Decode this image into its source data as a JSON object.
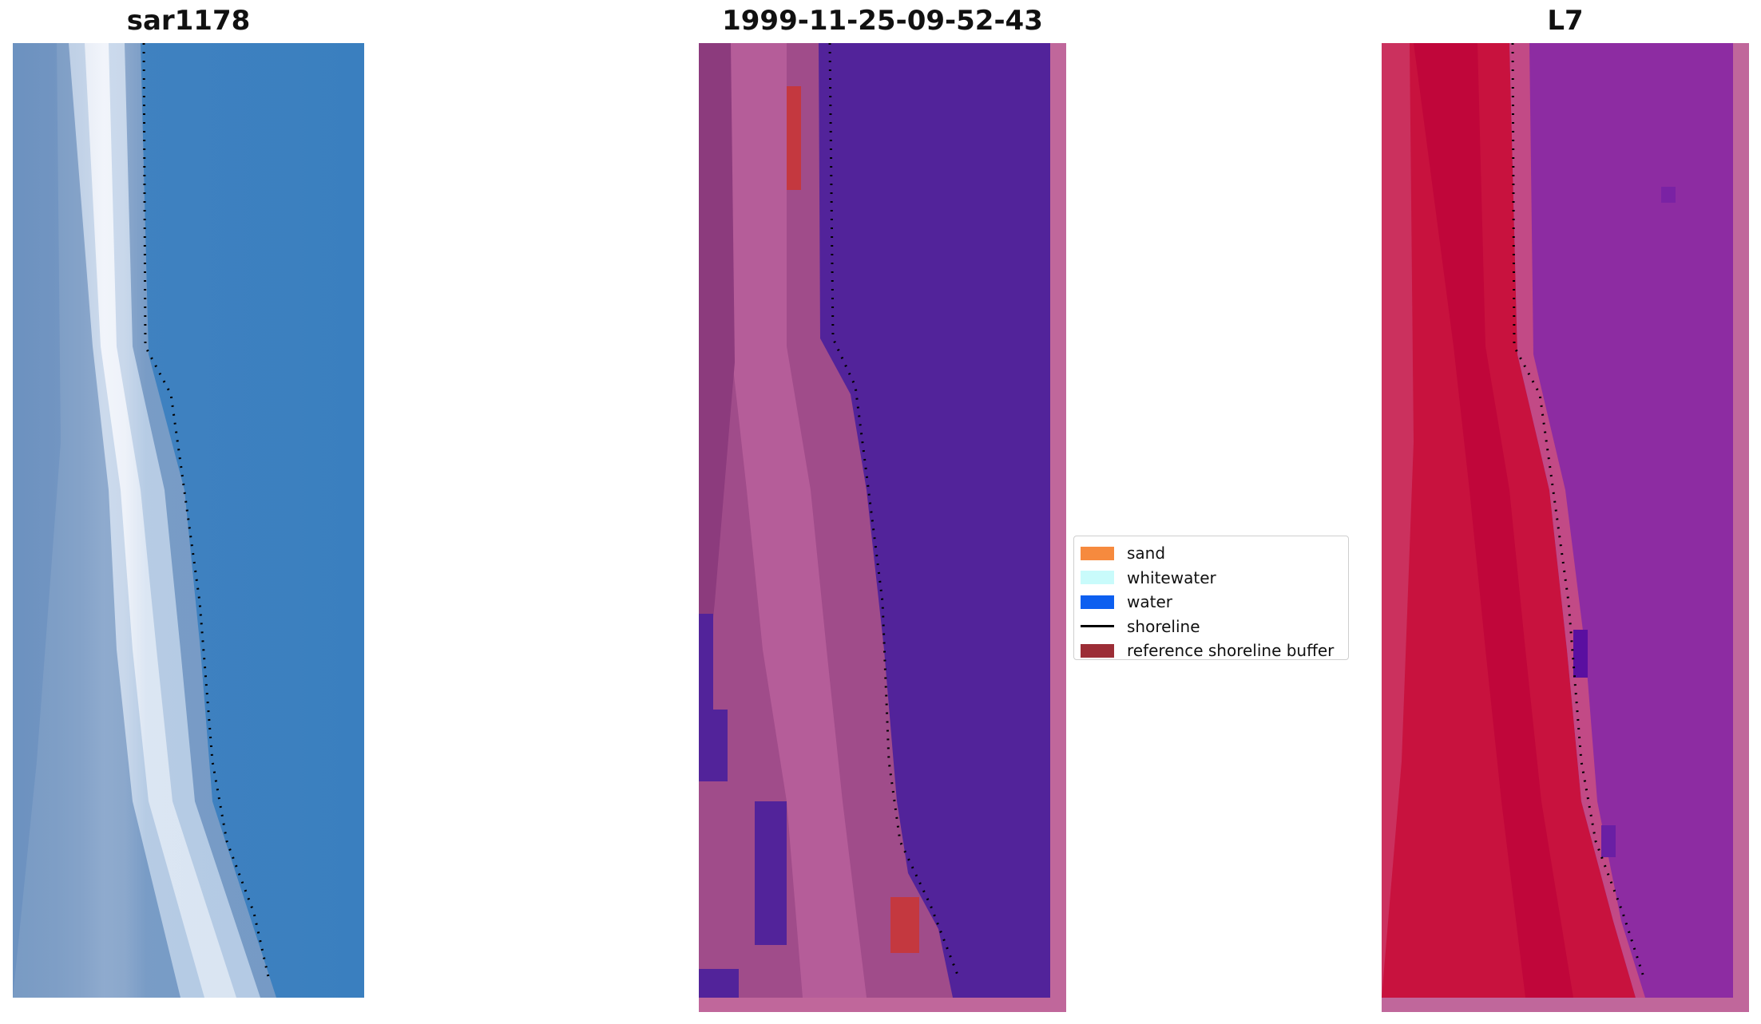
{
  "panels": {
    "left": {
      "title": "sar1178"
    },
    "middle": {
      "title": "1999-11-25-09-52-43"
    },
    "right": {
      "title": "L7"
    }
  },
  "legend": {
    "items": [
      {
        "label": "sand",
        "color": "#f68a3e",
        "kind": "patch"
      },
      {
        "label": "whitewater",
        "color": "#c9fbfb",
        "kind": "patch"
      },
      {
        "label": "water",
        "color": "#0d5ff0",
        "kind": "patch"
      },
      {
        "label": "shoreline",
        "color": "#000000",
        "kind": "line"
      },
      {
        "label": "reference shoreline buffer",
        "color": "#9c2d36",
        "kind": "patch"
      }
    ]
  },
  "colors": {
    "rgb_water": "#3a7fbf",
    "rgb_beach": "#dfe8f6",
    "classif_water": "#52239a",
    "classif_land": "#a04c8a",
    "classif_border": "#c0679b",
    "buffer_red": "#c4383f",
    "l7_sand": "#c8123e",
    "l7_water": "#8d2ca2"
  }
}
